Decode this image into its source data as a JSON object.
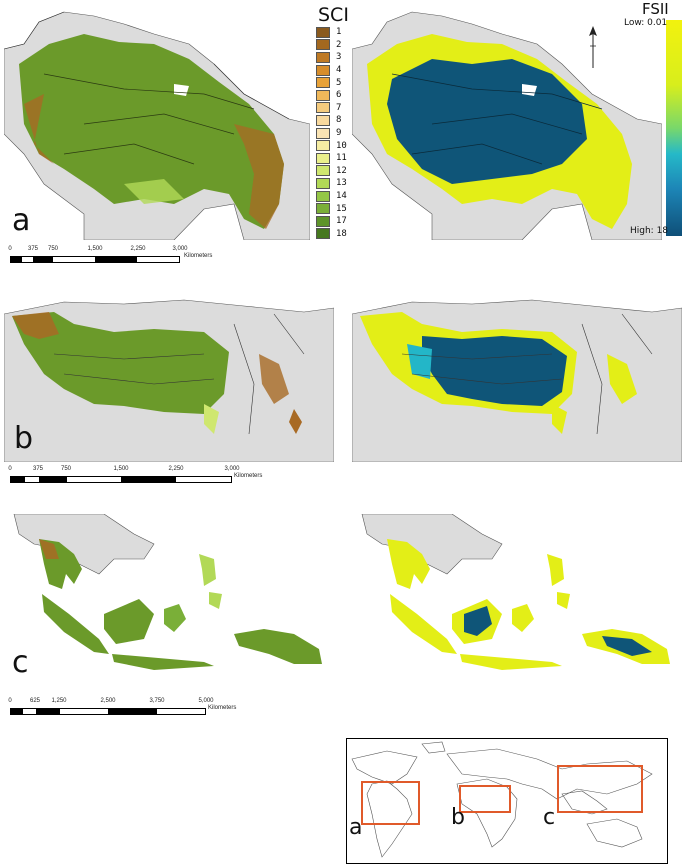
{
  "panels": {
    "a": {
      "letter": "a"
    },
    "b": {
      "letter": "b"
    },
    "c": {
      "letter": "c"
    }
  },
  "scalebars": {
    "a": {
      "ticks": [
        "0",
        "375",
        "750",
        "1,500",
        "2,250",
        "3,000"
      ],
      "unit": "Kilometers"
    },
    "b": {
      "ticks": [
        "0",
        "375",
        "750",
        "1,500",
        "2,250",
        "3,000"
      ],
      "unit": "Kilometers"
    },
    "c": {
      "ticks": [
        "0",
        "625",
        "1,250",
        "2,500",
        "3,750",
        "5,000"
      ],
      "unit": "Kilometers"
    }
  },
  "sci_legend": {
    "title": "SCI",
    "items": [
      {
        "label": "1",
        "color": "#8a5a1e"
      },
      {
        "label": "2",
        "color": "#a3681f"
      },
      {
        "label": "3",
        "color": "#bf7a25"
      },
      {
        "label": "4",
        "color": "#d68d2b"
      },
      {
        "label": "5",
        "color": "#e8a238"
      },
      {
        "label": "6",
        "color": "#f0b85a"
      },
      {
        "label": "7",
        "color": "#f5cb7e"
      },
      {
        "label": "8",
        "color": "#f8d99e"
      },
      {
        "label": "9",
        "color": "#fae4b4"
      },
      {
        "label": "10",
        "color": "#f6eda3"
      },
      {
        "label": "11",
        "color": "#eaf08c"
      },
      {
        "label": "12",
        "color": "#cfe76f"
      },
      {
        "label": "13",
        "color": "#b2d957"
      },
      {
        "label": "14",
        "color": "#94c646"
      },
      {
        "label": "15",
        "color": "#7aaf38"
      },
      {
        "label": "17",
        "color": "#5e942a"
      },
      {
        "label": "18",
        "color": "#46781f"
      }
    ]
  },
  "fsii_legend": {
    "title": "FSII",
    "low_label": "Low: 0.01",
    "high_label": "High: 18"
  },
  "inset": {
    "labels": [
      "a",
      "b",
      "c"
    ],
    "box_color": "#e05a2a"
  },
  "colors": {
    "land": "#dcdcdc",
    "forest_green": "#6b9a2a",
    "forest_brown": "#a86a24",
    "fsii_blue": "#0f5578",
    "fsii_yellow": "#e3ee17",
    "fsii_cyan": "#23b6c8"
  }
}
